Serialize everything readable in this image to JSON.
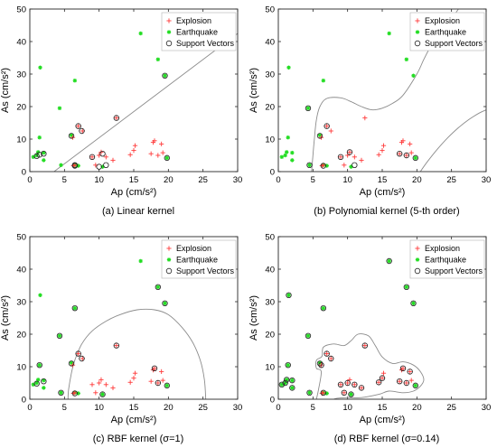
{
  "chart_data": [
    {
      "type": "scatter",
      "caption": "(a) Linear kernel",
      "xlabel": "Ap (cm/s²)",
      "ylabel": "As (cm/s²)",
      "xlim": [
        0,
        30
      ],
      "ylim": [
        0,
        50
      ],
      "xticks": [
        0,
        5,
        10,
        15,
        20,
        25,
        30
      ],
      "yticks": [
        0,
        10,
        20,
        30,
        40,
        50
      ],
      "legend_position": "top-right",
      "legend": [
        "Explosion",
        "Earthquake",
        "Support Vectors"
      ],
      "explosion": [
        [
          6.2,
          10.5
        ],
        [
          7,
          14
        ],
        [
          7.6,
          12.5
        ],
        [
          9,
          4.5
        ],
        [
          9.5,
          2
        ],
        [
          10,
          5
        ],
        [
          10.3,
          6
        ],
        [
          11,
          4.5
        ],
        [
          12,
          3.5
        ],
        [
          12.5,
          16.5
        ],
        [
          14.5,
          5.2
        ],
        [
          15,
          6.5
        ],
        [
          15.2,
          8
        ],
        [
          17.5,
          5.5
        ],
        [
          17.8,
          9
        ],
        [
          18,
          9.5
        ],
        [
          18.5,
          5
        ],
        [
          19,
          8.5
        ],
        [
          19.2,
          5.8
        ],
        [
          6.5,
          2
        ],
        [
          6.3,
          1.8
        ]
      ],
      "earthquake": [
        [
          0.5,
          4.5
        ],
        [
          1,
          5
        ],
        [
          1.2,
          6
        ],
        [
          1.4,
          10.5
        ],
        [
          1.5,
          32
        ],
        [
          2,
          5.8
        ],
        [
          2,
          3.5
        ],
        [
          4.3,
          19.5
        ],
        [
          4.5,
          2
        ],
        [
          6,
          11.2
        ],
        [
          6.5,
          2
        ],
        [
          6.5,
          28
        ],
        [
          7,
          1.8
        ],
        [
          10.5,
          1.5
        ],
        [
          16,
          42.5
        ],
        [
          18.5,
          34.5
        ],
        [
          19.5,
          29.5
        ],
        [
          19.8,
          4.2
        ]
      ],
      "support_vectors": [
        [
          1,
          4.8
        ],
        [
          1.4,
          5.2
        ],
        [
          2,
          5.5
        ],
        [
          6,
          11
        ],
        [
          6.5,
          2
        ],
        [
          7,
          14
        ],
        [
          7.5,
          12.5
        ],
        [
          9,
          4.5
        ],
        [
          10,
          1.5
        ],
        [
          10.5,
          5.5
        ],
        [
          11,
          2
        ],
        [
          12.5,
          16.5
        ],
        [
          19.5,
          29.5
        ],
        [
          19.8,
          4.2
        ],
        [
          6.5,
          1.8
        ]
      ],
      "boundary_curves": [
        [
          [
            3.5,
            0
          ],
          [
            30,
            42.5
          ]
        ]
      ]
    },
    {
      "type": "scatter",
      "caption": "(b) Polynomial kernel (5-th order)",
      "xlabel": "Ap (cm/s²)",
      "ylabel": "As (cm/s²)",
      "xlim": [
        0,
        30
      ],
      "ylim": [
        0,
        50
      ],
      "xticks": [
        0,
        5,
        10,
        15,
        20,
        25,
        30
      ],
      "yticks": [
        0,
        10,
        20,
        30,
        40,
        50
      ],
      "legend_position": "top-right",
      "legend": [
        "Explosion",
        "Earthquake",
        "Support Vectors"
      ],
      "explosion": [
        [
          6.2,
          10.5
        ],
        [
          7,
          14
        ],
        [
          7.6,
          12.5
        ],
        [
          9,
          4.5
        ],
        [
          9.5,
          2
        ],
        [
          10,
          5
        ],
        [
          10.3,
          6
        ],
        [
          11,
          4.5
        ],
        [
          12,
          3.5
        ],
        [
          12.5,
          16.5
        ],
        [
          14.5,
          5.2
        ],
        [
          15,
          6.5
        ],
        [
          15.2,
          8
        ],
        [
          17.5,
          5.5
        ],
        [
          17.8,
          9
        ],
        [
          18,
          9.5
        ],
        [
          18.5,
          5
        ],
        [
          19,
          8.5
        ],
        [
          19.2,
          5.8
        ],
        [
          6.5,
          2
        ],
        [
          6.3,
          1.8
        ]
      ],
      "earthquake": [
        [
          0.5,
          4.5
        ],
        [
          1,
          5
        ],
        [
          1.2,
          6
        ],
        [
          1.4,
          10.5
        ],
        [
          1.5,
          32
        ],
        [
          2,
          5.8
        ],
        [
          2,
          3.5
        ],
        [
          4.3,
          19.5
        ],
        [
          4.5,
          2
        ],
        [
          6,
          11.2
        ],
        [
          6.5,
          2
        ],
        [
          6.5,
          28
        ],
        [
          7,
          1.8
        ],
        [
          10.5,
          1.5
        ],
        [
          16,
          42.5
        ],
        [
          18.5,
          34.5
        ],
        [
          19.5,
          29.5
        ],
        [
          19.8,
          4.2
        ]
      ],
      "support_vectors": [
        [
          4.3,
          19.5
        ],
        [
          6,
          11
        ],
        [
          7,
          14
        ],
        [
          9,
          4.5
        ],
        [
          10.3,
          6
        ],
        [
          11,
          2
        ],
        [
          17.5,
          5.5
        ],
        [
          18.5,
          5
        ],
        [
          19.8,
          4.2
        ],
        [
          6.5,
          1.8
        ],
        [
          4.5,
          2
        ]
      ],
      "boundary_curves": [
        [
          [
            4.8,
            0
          ],
          [
            5,
            5
          ],
          [
            5.2,
            10
          ],
          [
            5.5,
            16
          ],
          [
            6,
            20
          ],
          [
            7,
            22.5
          ],
          [
            9,
            22.7
          ],
          [
            10.5,
            21.5
          ],
          [
            12,
            20
          ],
          [
            13.5,
            19
          ],
          [
            15,
            19.5
          ],
          [
            16.5,
            21
          ],
          [
            18,
            23.5
          ],
          [
            20,
            30
          ],
          [
            21,
            34.5
          ],
          [
            22,
            38.5
          ],
          [
            23.5,
            43
          ],
          [
            25,
            47
          ],
          [
            26,
            50
          ]
        ],
        [
          [
            20.5,
            0
          ],
          [
            21.5,
            3
          ],
          [
            23,
            7
          ],
          [
            24.5,
            10.5
          ],
          [
            26,
            13.5
          ],
          [
            27.5,
            16
          ],
          [
            29,
            18
          ],
          [
            30,
            19
          ]
        ]
      ]
    },
    {
      "type": "scatter",
      "caption": "(c) RBF kernel (σ=1)",
      "xlabel": "Ap (cm/s²)",
      "ylabel": "As (cm/s²)",
      "xlim": [
        0,
        30
      ],
      "ylim": [
        0,
        50
      ],
      "xticks": [
        0,
        5,
        10,
        15,
        20,
        25,
        30
      ],
      "yticks": [
        0,
        10,
        20,
        30,
        40,
        50
      ],
      "legend_position": "top-right",
      "legend": [
        "Explosion",
        "Earthquake",
        "Support Vectors"
      ],
      "explosion": [
        [
          6.2,
          10.5
        ],
        [
          7,
          14
        ],
        [
          7.6,
          12.5
        ],
        [
          9,
          4.5
        ],
        [
          9.5,
          2
        ],
        [
          10,
          5
        ],
        [
          10.3,
          6
        ],
        [
          11,
          4.5
        ],
        [
          12,
          3.5
        ],
        [
          12.5,
          16.5
        ],
        [
          14.5,
          5.2
        ],
        [
          15,
          6.5
        ],
        [
          15.2,
          8
        ],
        [
          17.5,
          5.5
        ],
        [
          17.8,
          9
        ],
        [
          18,
          9.5
        ],
        [
          18.5,
          5
        ],
        [
          19,
          8.5
        ],
        [
          19.2,
          5.8
        ],
        [
          6.5,
          2
        ],
        [
          6.3,
          1.8
        ]
      ],
      "earthquake": [
        [
          0.5,
          4.5
        ],
        [
          1,
          5
        ],
        [
          1.2,
          6
        ],
        [
          1.4,
          10.5
        ],
        [
          1.5,
          32
        ],
        [
          2,
          5.8
        ],
        [
          2,
          3.5
        ],
        [
          4.3,
          19.5
        ],
        [
          4.5,
          2
        ],
        [
          6,
          11.2
        ],
        [
          6.5,
          2
        ],
        [
          6.5,
          28
        ],
        [
          7,
          1.8
        ],
        [
          10.5,
          1.5
        ],
        [
          16,
          42.5
        ],
        [
          18.5,
          34.5
        ],
        [
          19.5,
          29.5
        ],
        [
          19.8,
          4.2
        ]
      ],
      "support_vectors": [
        [
          1,
          4.8
        ],
        [
          1.4,
          10.5
        ],
        [
          2,
          5.5
        ],
        [
          4.3,
          19.5
        ],
        [
          4.5,
          2
        ],
        [
          6.5,
          28
        ],
        [
          6,
          11
        ],
        [
          7,
          14
        ],
        [
          7.5,
          12.5
        ],
        [
          6.5,
          1.8
        ],
        [
          10.5,
          1.5
        ],
        [
          12.5,
          16.5
        ],
        [
          18.5,
          34.5
        ],
        [
          19.5,
          29.5
        ],
        [
          19.8,
          4.2
        ],
        [
          18,
          9.5
        ],
        [
          18.5,
          5
        ]
      ],
      "boundary_curves": [
        [
          [
            5.5,
            0
          ],
          [
            5.6,
            3
          ],
          [
            6,
            8
          ],
          [
            6.5,
            12
          ],
          [
            7.5,
            17
          ],
          [
            9,
            21
          ],
          [
            11,
            24
          ],
          [
            13,
            26
          ],
          [
            15.5,
            27.5
          ],
          [
            18,
            27.5
          ],
          [
            20,
            26
          ],
          [
            22,
            22
          ],
          [
            23.5,
            17.5
          ],
          [
            24.6,
            12
          ],
          [
            25.2,
            6
          ],
          [
            25.4,
            0
          ]
        ]
      ]
    },
    {
      "type": "scatter",
      "caption": "(d) RBF kernel (σ=0.14)",
      "xlabel": "Ap (cm/s²)",
      "ylabel": "As (cm/s²)",
      "xlim": [
        0,
        30
      ],
      "ylim": [
        0,
        50
      ],
      "xticks": [
        0,
        5,
        10,
        15,
        20,
        25,
        30
      ],
      "yticks": [
        0,
        10,
        20,
        30,
        40,
        50
      ],
      "legend_position": "top-right",
      "legend": [
        "Explosion",
        "Earthquake",
        "Support Vectors"
      ],
      "explosion": [
        [
          6.2,
          10.5
        ],
        [
          7,
          14
        ],
        [
          7.6,
          12.5
        ],
        [
          9,
          4.5
        ],
        [
          9.5,
          2
        ],
        [
          10,
          5
        ],
        [
          10.3,
          6
        ],
        [
          11,
          4.5
        ],
        [
          12,
          3.5
        ],
        [
          12.5,
          16.5
        ],
        [
          14.5,
          5.2
        ],
        [
          15,
          6.5
        ],
        [
          15.2,
          8
        ],
        [
          17.5,
          5.5
        ],
        [
          17.8,
          9
        ],
        [
          18,
          9.5
        ],
        [
          18.5,
          5
        ],
        [
          19,
          8.5
        ],
        [
          19.2,
          5.8
        ],
        [
          6.5,
          2
        ],
        [
          6.3,
          1.8
        ]
      ],
      "earthquake": [
        [
          0.5,
          4.5
        ],
        [
          1,
          5
        ],
        [
          1.2,
          6
        ],
        [
          1.4,
          10.5
        ],
        [
          1.5,
          32
        ],
        [
          2,
          5.8
        ],
        [
          2,
          3.5
        ],
        [
          4.3,
          19.5
        ],
        [
          4.5,
          2
        ],
        [
          6,
          11.2
        ],
        [
          6.5,
          2
        ],
        [
          6.5,
          28
        ],
        [
          7,
          1.8
        ],
        [
          10.5,
          1.5
        ],
        [
          16,
          42.5
        ],
        [
          18.5,
          34.5
        ],
        [
          19.5,
          29.5
        ],
        [
          19.8,
          4.2
        ]
      ],
      "support_vectors": [
        [
          0.5,
          4.5
        ],
        [
          1,
          5
        ],
        [
          1.2,
          6
        ],
        [
          1.4,
          10.5
        ],
        [
          1.5,
          32
        ],
        [
          2,
          3.5
        ],
        [
          2,
          5.8
        ],
        [
          4.3,
          19.5
        ],
        [
          4.5,
          2
        ],
        [
          6,
          11
        ],
        [
          6.5,
          28
        ],
        [
          6.2,
          10.5
        ],
        [
          6.5,
          2
        ],
        [
          7,
          14
        ],
        [
          7.6,
          12.5
        ],
        [
          9,
          4.5
        ],
        [
          9.5,
          2
        ],
        [
          10,
          5
        ],
        [
          10.5,
          1.5
        ],
        [
          11,
          4.5
        ],
        [
          12,
          3.5
        ],
        [
          12.5,
          16.5
        ],
        [
          14.5,
          5.2
        ],
        [
          15,
          6.5
        ],
        [
          16,
          42.5
        ],
        [
          17.5,
          5.5
        ],
        [
          18,
          9.5
        ],
        [
          18.5,
          34.5
        ],
        [
          18.5,
          5
        ],
        [
          19,
          8.5
        ],
        [
          19.5,
          29.5
        ],
        [
          19.8,
          4.2
        ]
      ],
      "boundary_curves": [
        [
          [
            5.5,
            0
          ],
          [
            5.8,
            3
          ],
          [
            6.2,
            8.5
          ],
          [
            5.5,
            9.5
          ],
          [
            5.5,
            12
          ],
          [
            6.3,
            13.2
          ],
          [
            6.5,
            16
          ],
          [
            8,
            17
          ],
          [
            9.5,
            16.5
          ],
          [
            10.5,
            18
          ],
          [
            11.5,
            20
          ],
          [
            13,
            19.5
          ],
          [
            14,
            16.5
          ],
          [
            15,
            13
          ],
          [
            16.5,
            11
          ],
          [
            18,
            11.5
          ],
          [
            19.5,
            10.5
          ],
          [
            20.5,
            8.5
          ],
          [
            21,
            6
          ],
          [
            20.5,
            4
          ],
          [
            19.5,
            2.5
          ],
          [
            18,
            2
          ],
          [
            16,
            2.5
          ],
          [
            14.5,
            1.5
          ],
          [
            12,
            0.5
          ],
          [
            10,
            0.5
          ],
          [
            8.5,
            0.3
          ],
          [
            8,
            0
          ]
        ]
      ]
    }
  ]
}
